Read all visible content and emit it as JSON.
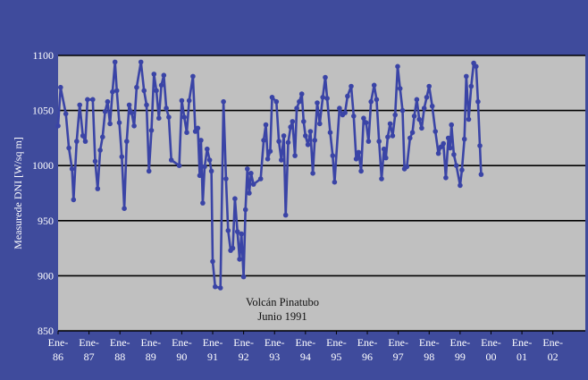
{
  "chart_data": {
    "type": "line",
    "title": "",
    "xlabel": "",
    "ylabel": "Measurede DNI [W/sq m]",
    "ylim": [
      850,
      1100
    ],
    "yticks": [
      850,
      900,
      950,
      1000,
      1050,
      1100
    ],
    "grid": "horizontal",
    "xlim": [
      1986.0,
      2003.05
    ],
    "x_tick_labels": [
      {
        "x": 1986,
        "top": "Ene-",
        "bottom": "86"
      },
      {
        "x": 1987,
        "top": "Ene-",
        "bottom": "87"
      },
      {
        "x": 1988,
        "top": "Ene-",
        "bottom": "88"
      },
      {
        "x": 1989,
        "top": "Ene-",
        "bottom": "89"
      },
      {
        "x": 1990,
        "top": "Ene-",
        "bottom": "90"
      },
      {
        "x": 1991,
        "top": "Ene-",
        "bottom": "91"
      },
      {
        "x": 1992,
        "top": "Ene-",
        "bottom": "92"
      },
      {
        "x": 1993,
        "top": "Ene-",
        "bottom": "93"
      },
      {
        "x": 1994,
        "top": "Ene-",
        "bottom": "94"
      },
      {
        "x": 1995,
        "top": "Ene-",
        "bottom": "95"
      },
      {
        "x": 1996,
        "top": "Ene-",
        "bottom": "96"
      },
      {
        "x": 1997,
        "top": "Ene-",
        "bottom": "97"
      },
      {
        "x": 1998,
        "top": "Ene-",
        "bottom": "98"
      },
      {
        "x": 1999,
        "top": "Ene-",
        "bottom": "99"
      },
      {
        "x": 2000,
        "top": "Ene-",
        "bottom": "00"
      },
      {
        "x": 2001,
        "top": "Ene-",
        "bottom": "01"
      },
      {
        "x": 2002,
        "top": "Ene-",
        "bottom": "02"
      }
    ],
    "annotation": {
      "line1": "Volcán Pinatubo",
      "line2": "Junio 1991"
    },
    "series": [
      {
        "name": "",
        "color": "#3a44a6",
        "points": [
          [
            1986.0,
            1036
          ],
          [
            1986.08,
            1071
          ],
          [
            1986.25,
            1047
          ],
          [
            1986.35,
            1016
          ],
          [
            1986.45,
            997
          ],
          [
            1986.5,
            969
          ],
          [
            1986.6,
            1022
          ],
          [
            1986.7,
            1055
          ],
          [
            1986.8,
            1027
          ],
          [
            1986.88,
            1022
          ],
          [
            1986.95,
            1060
          ],
          [
            1987.12,
            1060
          ],
          [
            1987.2,
            1004
          ],
          [
            1987.28,
            979
          ],
          [
            1987.36,
            1014
          ],
          [
            1987.44,
            1026
          ],
          [
            1987.52,
            1049
          ],
          [
            1987.6,
            1058
          ],
          [
            1987.68,
            1038
          ],
          [
            1987.76,
            1067
          ],
          [
            1987.84,
            1094
          ],
          [
            1987.9,
            1068
          ],
          [
            1987.98,
            1039
          ],
          [
            1988.06,
            1008
          ],
          [
            1988.14,
            961
          ],
          [
            1988.22,
            1022
          ],
          [
            1988.3,
            1055
          ],
          [
            1988.38,
            1048
          ],
          [
            1988.46,
            1036
          ],
          [
            1988.54,
            1071
          ],
          [
            1988.68,
            1094
          ],
          [
            1988.78,
            1068
          ],
          [
            1988.86,
            1055
          ],
          [
            1988.94,
            995
          ],
          [
            1989.02,
            1032
          ],
          [
            1989.1,
            1083
          ],
          [
            1989.18,
            1068
          ],
          [
            1989.26,
            1043
          ],
          [
            1989.34,
            1073
          ],
          [
            1989.42,
            1082
          ],
          [
            1989.5,
            1052
          ],
          [
            1989.58,
            1044
          ],
          [
            1989.66,
            1005
          ],
          [
            1989.92,
            1000
          ],
          [
            1990.0,
            1059
          ],
          [
            1990.08,
            1044
          ],
          [
            1990.16,
            1030
          ],
          [
            1990.24,
            1059
          ],
          [
            1990.36,
            1081
          ],
          [
            1990.44,
            1031
          ],
          [
            1990.52,
            1034
          ],
          [
            1990.58,
            991
          ],
          [
            1990.62,
            1023
          ],
          [
            1990.68,
            966
          ],
          [
            1990.74,
            999
          ],
          [
            1990.82,
            1015
          ],
          [
            1990.9,
            1005
          ],
          [
            1990.96,
            995
          ],
          [
            1991.0,
            913
          ],
          [
            1991.08,
            890
          ],
          [
            1991.25,
            889
          ],
          [
            1991.35,
            1058
          ],
          [
            1991.43,
            988
          ],
          [
            1991.5,
            941
          ],
          [
            1991.58,
            923
          ],
          [
            1991.65,
            925
          ],
          [
            1991.72,
            970
          ],
          [
            1991.8,
            940
          ],
          [
            1991.87,
            915
          ],
          [
            1991.93,
            938
          ],
          [
            1992.0,
            899
          ],
          [
            1992.06,
            960
          ],
          [
            1992.12,
            997
          ],
          [
            1992.18,
            975
          ],
          [
            1992.24,
            993
          ],
          [
            1992.32,
            983
          ],
          [
            1992.55,
            988
          ],
          [
            1992.65,
            1023
          ],
          [
            1992.72,
            1037
          ],
          [
            1992.78,
            1006
          ],
          [
            1992.86,
            1013
          ],
          [
            1992.92,
            1062
          ],
          [
            1993.06,
            1058
          ],
          [
            1993.14,
            1022
          ],
          [
            1993.22,
            1005
          ],
          [
            1993.3,
            1027
          ],
          [
            1993.36,
            955
          ],
          [
            1993.44,
            1021
          ],
          [
            1993.52,
            1035
          ],
          [
            1993.58,
            1040
          ],
          [
            1993.66,
            1009
          ],
          [
            1993.72,
            1052
          ],
          [
            1993.8,
            1058
          ],
          [
            1993.88,
            1065
          ],
          [
            1993.94,
            1040
          ],
          [
            1994.0,
            1027
          ],
          [
            1994.08,
            1019
          ],
          [
            1994.16,
            1031
          ],
          [
            1994.24,
            993
          ],
          [
            1994.3,
            1023
          ],
          [
            1994.38,
            1057
          ],
          [
            1994.46,
            1038
          ],
          [
            1994.56,
            1062
          ],
          [
            1994.64,
            1080
          ],
          [
            1994.7,
            1061
          ],
          [
            1994.8,
            1030
          ],
          [
            1994.88,
            1009
          ],
          [
            1994.94,
            985
          ],
          [
            1995.1,
            1052
          ],
          [
            1995.2,
            1046
          ],
          [
            1995.28,
            1048
          ],
          [
            1995.36,
            1063
          ],
          [
            1995.48,
            1072
          ],
          [
            1995.56,
            1045
          ],
          [
            1995.64,
            1006
          ],
          [
            1995.72,
            1012
          ],
          [
            1995.8,
            995
          ],
          [
            1995.88,
            1043
          ],
          [
            1995.96,
            1039
          ],
          [
            1996.04,
            1022
          ],
          [
            1996.12,
            1058
          ],
          [
            1996.22,
            1073
          ],
          [
            1996.3,
            1060
          ],
          [
            1996.38,
            1022
          ],
          [
            1996.46,
            988
          ],
          [
            1996.54,
            1015
          ],
          [
            1996.6,
            1007
          ],
          [
            1996.66,
            1026
          ],
          [
            1996.74,
            1038
          ],
          [
            1996.82,
            1027
          ],
          [
            1996.9,
            1046
          ],
          [
            1996.98,
            1090
          ],
          [
            1997.06,
            1070
          ],
          [
            1997.14,
            1050
          ],
          [
            1997.2,
            997
          ],
          [
            1997.28,
            999
          ],
          [
            1997.38,
            1025
          ],
          [
            1997.46,
            1030
          ],
          [
            1997.52,
            1045
          ],
          [
            1997.6,
            1060
          ],
          [
            1997.68,
            1042
          ],
          [
            1997.76,
            1034
          ],
          [
            1997.84,
            1052
          ],
          [
            1997.92,
            1062
          ],
          [
            1998.0,
            1072
          ],
          [
            1998.1,
            1054
          ],
          [
            1998.2,
            1031
          ],
          [
            1998.3,
            1011
          ],
          [
            1998.38,
            1017
          ],
          [
            1998.46,
            1020
          ],
          [
            1998.54,
            989
          ],
          [
            1998.62,
            1025
          ],
          [
            1998.68,
            1016
          ],
          [
            1998.72,
            1037
          ],
          [
            1998.8,
            1010
          ],
          [
            1998.88,
            1000
          ],
          [
            1999.0,
            982
          ],
          [
            1999.06,
            996
          ],
          [
            1999.14,
            1024
          ],
          [
            1999.2,
            1081
          ],
          [
            1999.28,
            1042
          ],
          [
            1999.36,
            1072
          ],
          [
            1999.44,
            1093
          ],
          [
            1999.52,
            1090
          ],
          [
            1999.58,
            1058
          ],
          [
            1999.64,
            1018
          ],
          [
            1999.68,
            992
          ]
        ]
      }
    ]
  }
}
